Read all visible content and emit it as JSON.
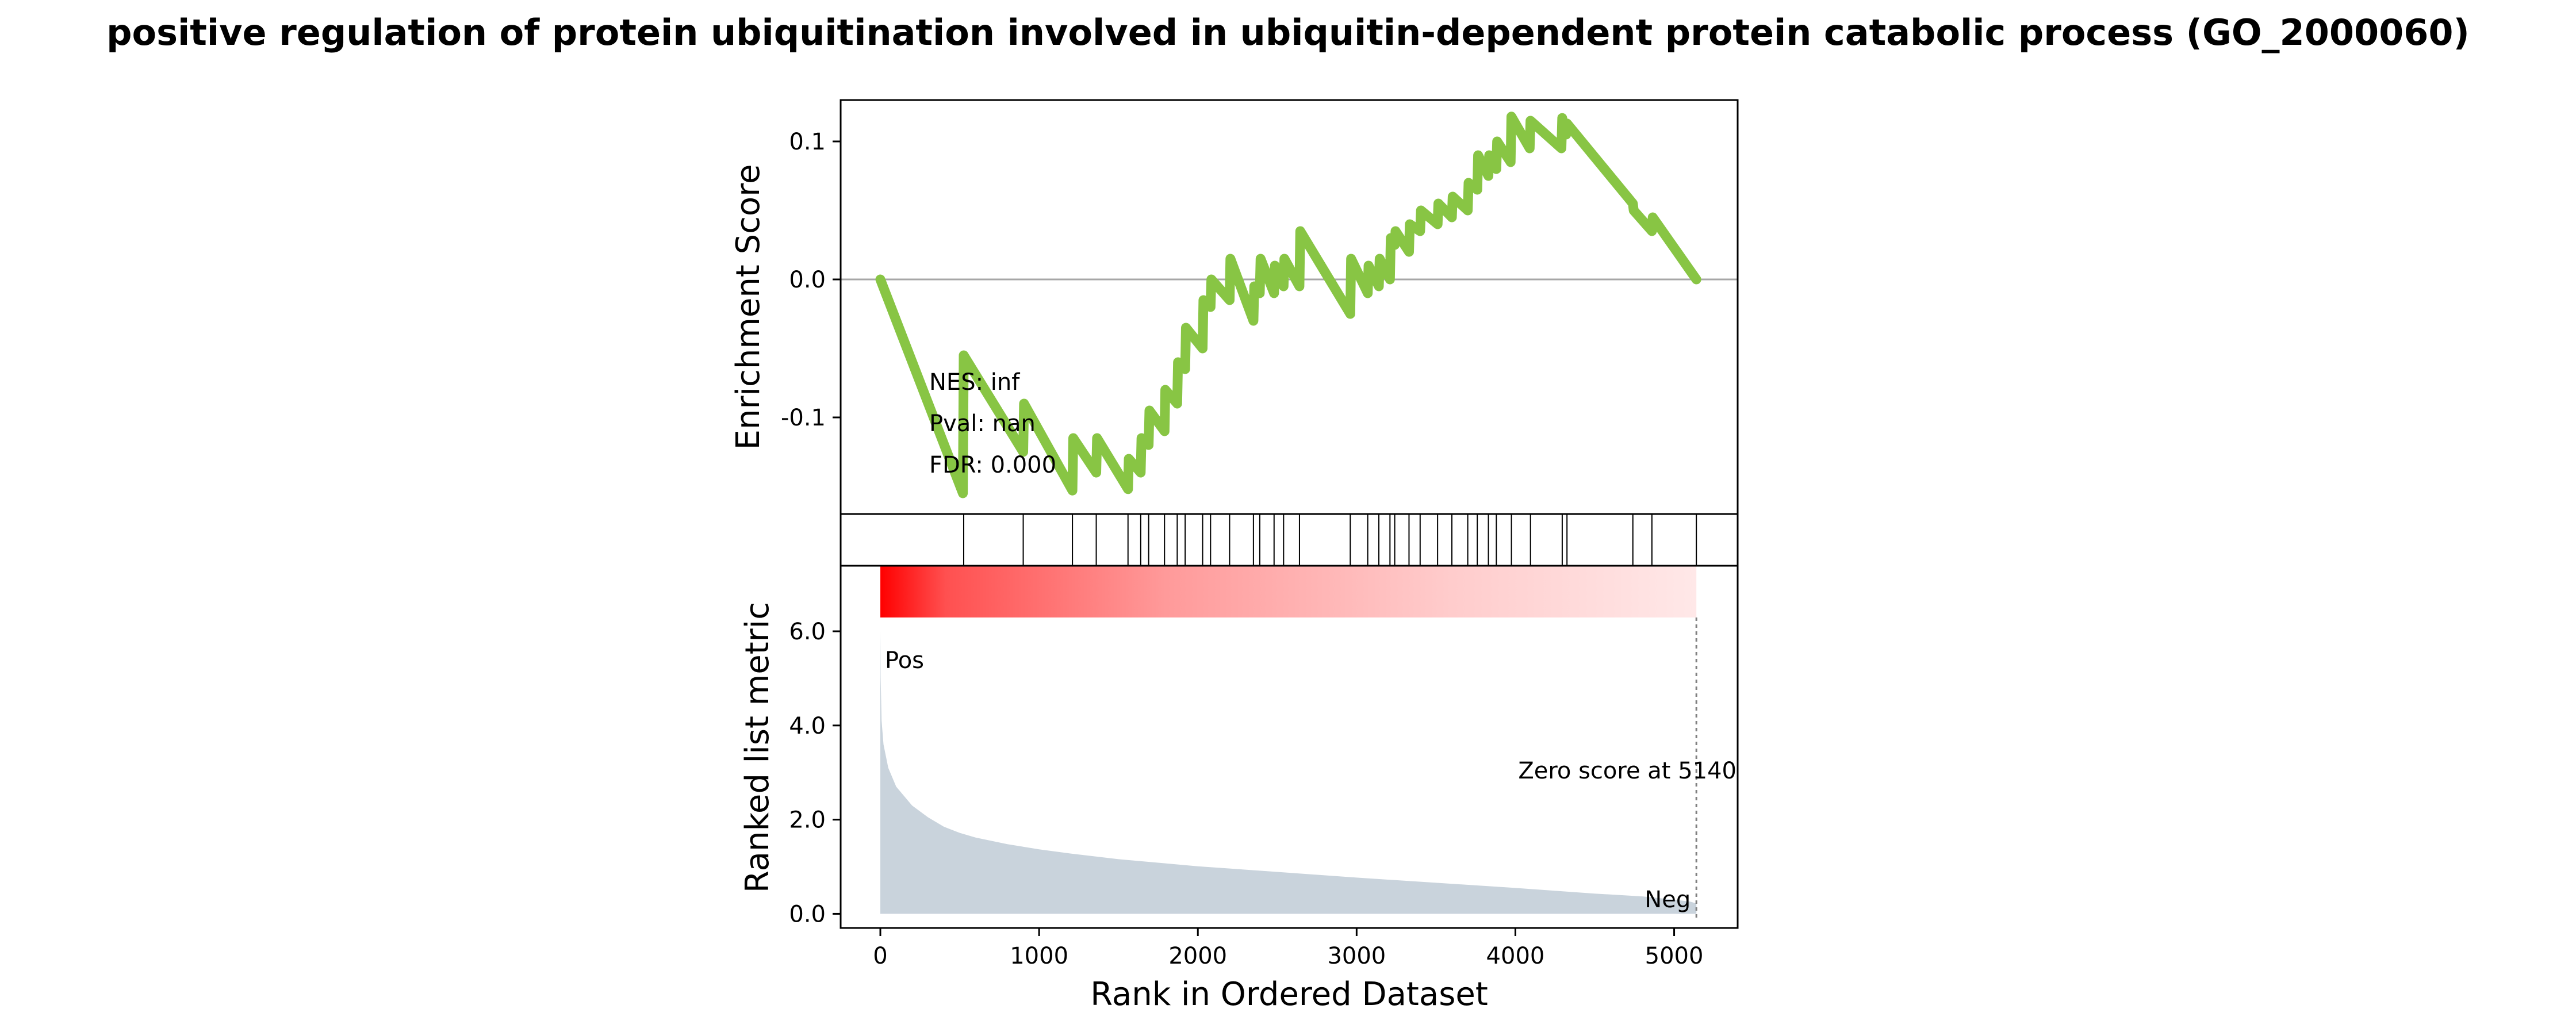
{
  "chart_data": {
    "type": "line",
    "title": "positive regulation of protein ubiquitination involved in ubiquitin-dependent protein catabolic process (GO_2000060)",
    "running_enrichment": {
      "ylabel": "Enrichment Score",
      "yticks": [
        0.1,
        0.0,
        -0.1
      ],
      "ytick_labels": [
        "0.1",
        "0.0",
        "-0.1"
      ],
      "ylim": [
        -0.17,
        0.13
      ],
      "color": "#88c544",
      "stats": {
        "nes": "NES: inf",
        "pval": "Pval: nan",
        "fdr": "FDR: 0.000"
      },
      "points": [
        [
          0,
          0.0
        ],
        [
          520,
          -0.155
        ],
        [
          525,
          -0.055
        ],
        [
          900,
          -0.125
        ],
        [
          905,
          -0.09
        ],
        [
          1210,
          -0.153
        ],
        [
          1215,
          -0.115
        ],
        [
          1360,
          -0.14
        ],
        [
          1365,
          -0.115
        ],
        [
          1560,
          -0.152
        ],
        [
          1565,
          -0.13
        ],
        [
          1640,
          -0.14
        ],
        [
          1645,
          -0.115
        ],
        [
          1690,
          -0.12
        ],
        [
          1695,
          -0.095
        ],
        [
          1790,
          -0.11
        ],
        [
          1795,
          -0.08
        ],
        [
          1870,
          -0.09
        ],
        [
          1875,
          -0.06
        ],
        [
          1920,
          -0.065
        ],
        [
          1925,
          -0.035
        ],
        [
          2030,
          -0.05
        ],
        [
          2035,
          -0.015
        ],
        [
          2080,
          -0.02
        ],
        [
          2085,
          0.0
        ],
        [
          2200,
          -0.015
        ],
        [
          2205,
          0.015
        ],
        [
          2350,
          -0.03
        ],
        [
          2355,
          -0.005
        ],
        [
          2390,
          -0.01
        ],
        [
          2395,
          0.015
        ],
        [
          2480,
          -0.01
        ],
        [
          2485,
          0.01
        ],
        [
          2540,
          -0.005
        ],
        [
          2545,
          0.015
        ],
        [
          2640,
          -0.005
        ],
        [
          2645,
          0.035
        ],
        [
          2960,
          -0.025
        ],
        [
          2965,
          0.015
        ],
        [
          3070,
          -0.01
        ],
        [
          3075,
          0.01
        ],
        [
          3140,
          -0.005
        ],
        [
          3145,
          0.015
        ],
        [
          3210,
          0.0
        ],
        [
          3215,
          0.03
        ],
        [
          3240,
          0.025
        ],
        [
          3245,
          0.035
        ],
        [
          3330,
          0.02
        ],
        [
          3335,
          0.04
        ],
        [
          3400,
          0.035
        ],
        [
          3405,
          0.05
        ],
        [
          3510,
          0.04
        ],
        [
          3515,
          0.055
        ],
        [
          3600,
          0.045
        ],
        [
          3605,
          0.06
        ],
        [
          3700,
          0.05
        ],
        [
          3705,
          0.07
        ],
        [
          3760,
          0.065
        ],
        [
          3765,
          0.09
        ],
        [
          3830,
          0.075
        ],
        [
          3835,
          0.09
        ],
        [
          3880,
          0.08
        ],
        [
          3885,
          0.1
        ],
        [
          3970,
          0.085
        ],
        [
          3975,
          0.118
        ],
        [
          4090,
          0.095
        ],
        [
          4095,
          0.115
        ],
        [
          4290,
          0.095
        ],
        [
          4295,
          0.117
        ],
        [
          4320,
          0.105
        ],
        [
          4325,
          0.113
        ],
        [
          4740,
          0.055
        ],
        [
          4745,
          0.05
        ],
        [
          4860,
          0.035
        ],
        [
          4865,
          0.045
        ],
        [
          5140,
          0.0
        ]
      ]
    },
    "hits": [
      525,
      900,
      1210,
      1360,
      1560,
      1640,
      1690,
      1790,
      1870,
      1920,
      2030,
      2080,
      2200,
      2350,
      2390,
      2480,
      2540,
      2640,
      2960,
      3070,
      3140,
      3210,
      3240,
      3330,
      3400,
      3510,
      3600,
      3700,
      3760,
      3830,
      3880,
      3975,
      4095,
      4295,
      4325,
      4740,
      4860,
      5140
    ],
    "ranked_metric": {
      "ylabel": "Ranked list metric",
      "xlabel": "Rank in Ordered Dataset",
      "yticks": [
        0.0,
        2.0,
        4.0,
        6.0
      ],
      "ytick_labels": [
        "0.0",
        "2.0",
        "4.0",
        "6.0"
      ],
      "xticks": [
        0,
        1000,
        2000,
        3000,
        4000,
        5000
      ],
      "xtick_labels": [
        "0",
        "1000",
        "2000",
        "3000",
        "4000",
        "5000"
      ],
      "ylim": [
        -0.3,
        6.0
      ],
      "xlim": [
        -250,
        5400
      ],
      "fill_color": "#c9d3dc",
      "pos_label": "Pos",
      "neg_label": "Neg",
      "pos_color": "#ff0000",
      "neg_color": "#0000ff",
      "zero_score_text": "Zero score at 5140",
      "zero_score_rank": 5140,
      "points": [
        [
          0,
          6.0
        ],
        [
          2,
          5.0
        ],
        [
          8,
          4.1
        ],
        [
          20,
          3.6
        ],
        [
          50,
          3.1
        ],
        [
          100,
          2.7
        ],
        [
          200,
          2.3
        ],
        [
          300,
          2.05
        ],
        [
          400,
          1.85
        ],
        [
          500,
          1.72
        ],
        [
          600,
          1.62
        ],
        [
          800,
          1.48
        ],
        [
          1000,
          1.37
        ],
        [
          1200,
          1.28
        ],
        [
          1500,
          1.16
        ],
        [
          1800,
          1.07
        ],
        [
          2000,
          1.01
        ],
        [
          2500,
          0.89
        ],
        [
          3000,
          0.77
        ],
        [
          3500,
          0.66
        ],
        [
          4000,
          0.55
        ],
        [
          4500,
          0.43
        ],
        [
          4800,
          0.37
        ],
        [
          5000,
          0.3
        ],
        [
          5100,
          0.26
        ],
        [
          5140,
          0.22
        ]
      ]
    }
  }
}
